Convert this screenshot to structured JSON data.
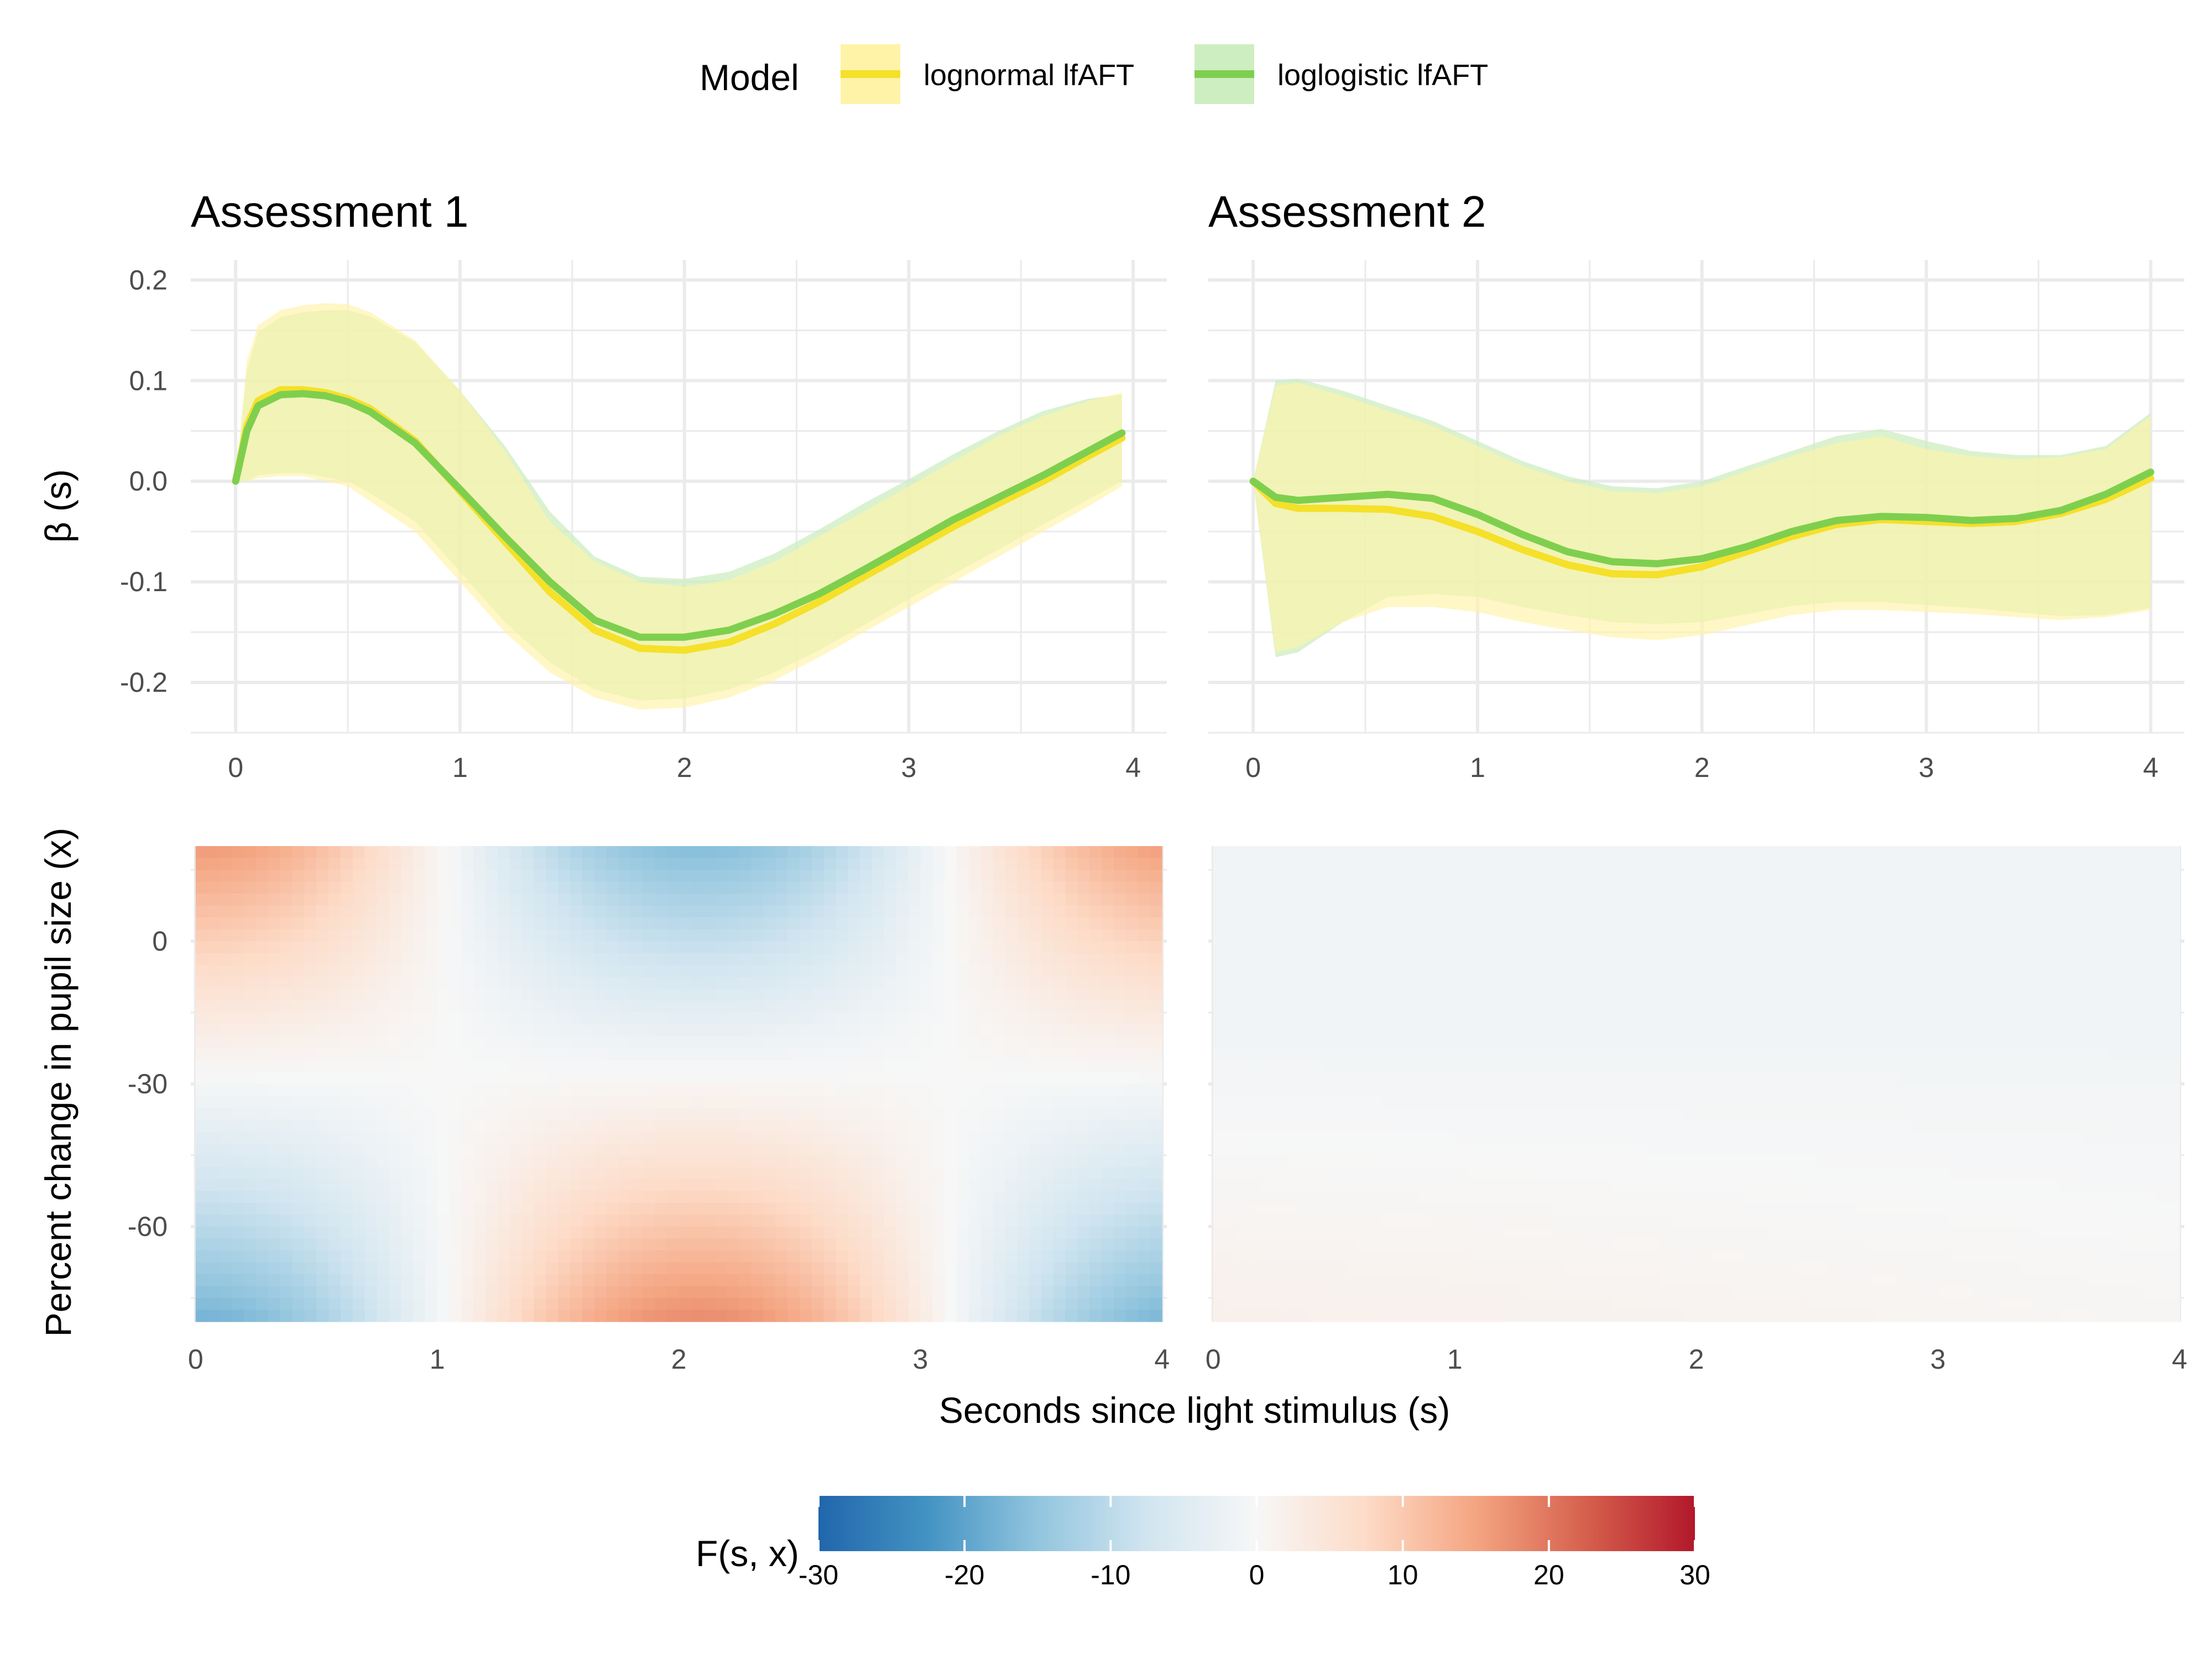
{
  "legend": {
    "title": "Model",
    "items": [
      {
        "label": "lognormal lfAFT",
        "line_color": "#f5e02a",
        "band_color": "#fff3a8"
      },
      {
        "label": "loglogistic lfAFT",
        "line_color": "#7fcf4f",
        "band_color": "#cdeec0"
      }
    ]
  },
  "colorbar": {
    "title": "F(s, x)",
    "ticks": [
      "-30",
      "-20",
      "-10",
      "0",
      "10",
      "20",
      "30"
    ],
    "range": [
      -30,
      30
    ],
    "colors": [
      "#2166ac",
      "#4393c3",
      "#92c5de",
      "#d1e5f0",
      "#f7f7f7",
      "#fddbc7",
      "#f4a582",
      "#d6604d",
      "#b2182b"
    ]
  },
  "chart_data": [
    {
      "type": "line",
      "panel": "top-left",
      "title": "Assessment 1",
      "xlabel": "",
      "ylabel": "β (s)",
      "xlim": [
        -0.2,
        4.15
      ],
      "ylim": [
        -0.25,
        0.22
      ],
      "x_ticks": [
        "0",
        "1",
        "2",
        "3",
        "4"
      ],
      "y_ticks": [
        "0.2",
        "0.1",
        "0.0",
        "-0.1",
        "-0.2"
      ],
      "series": [
        {
          "name": "lognormal lfAFT",
          "x": [
            0,
            0.05,
            0.1,
            0.2,
            0.3,
            0.4,
            0.5,
            0.6,
            0.8,
            1.0,
            1.2,
            1.4,
            1.6,
            1.8,
            2.0,
            2.2,
            2.4,
            2.6,
            2.8,
            3.0,
            3.2,
            3.4,
            3.6,
            3.8,
            3.95
          ],
          "y": [
            0,
            0.055,
            0.08,
            0.091,
            0.091,
            0.088,
            0.082,
            0.072,
            0.04,
            -0.01,
            -0.06,
            -0.11,
            -0.148,
            -0.166,
            -0.168,
            -0.16,
            -0.142,
            -0.12,
            -0.095,
            -0.07,
            -0.045,
            -0.022,
            0.0,
            0.025,
            0.043
          ],
          "lower": [
            0,
            0.0,
            0.003,
            0.005,
            0.005,
            0.0,
            -0.005,
            -0.02,
            -0.05,
            -0.1,
            -0.15,
            -0.19,
            -0.215,
            -0.227,
            -0.225,
            -0.215,
            -0.198,
            -0.175,
            -0.15,
            -0.125,
            -0.1,
            -0.075,
            -0.05,
            -0.025,
            -0.005
          ],
          "upper": [
            0,
            0.12,
            0.155,
            0.17,
            0.175,
            0.177,
            0.176,
            0.168,
            0.14,
            0.09,
            0.03,
            -0.04,
            -0.08,
            -0.1,
            -0.105,
            -0.098,
            -0.08,
            -0.055,
            -0.03,
            -0.005,
            0.02,
            0.045,
            0.065,
            0.08,
            0.088
          ]
        },
        {
          "name": "loglogistic lfAFT",
          "x": [
            0,
            0.05,
            0.1,
            0.2,
            0.3,
            0.4,
            0.5,
            0.6,
            0.8,
            1.0,
            1.2,
            1.4,
            1.6,
            1.8,
            2.0,
            2.2,
            2.4,
            2.6,
            2.8,
            3.0,
            3.2,
            3.4,
            3.6,
            3.8,
            3.95
          ],
          "y": [
            0,
            0.05,
            0.075,
            0.086,
            0.087,
            0.085,
            0.079,
            0.069,
            0.038,
            -0.008,
            -0.055,
            -0.1,
            -0.138,
            -0.155,
            -0.155,
            -0.148,
            -0.132,
            -0.112,
            -0.088,
            -0.063,
            -0.038,
            -0.016,
            0.006,
            0.03,
            0.048
          ],
          "lower": [
            0,
            0.0,
            0.006,
            0.008,
            0.008,
            0.004,
            0.0,
            -0.012,
            -0.04,
            -0.09,
            -0.14,
            -0.18,
            -0.207,
            -0.218,
            -0.216,
            -0.207,
            -0.19,
            -0.168,
            -0.143,
            -0.117,
            -0.092,
            -0.068,
            -0.043,
            -0.018,
            0.0
          ],
          "upper": [
            0,
            0.11,
            0.148,
            0.163,
            0.168,
            0.17,
            0.17,
            0.164,
            0.138,
            0.09,
            0.035,
            -0.03,
            -0.075,
            -0.095,
            -0.097,
            -0.09,
            -0.072,
            -0.048,
            -0.022,
            0.002,
            0.027,
            0.05,
            0.07,
            0.082,
            0.086
          ]
        }
      ]
    },
    {
      "type": "line",
      "panel": "top-right",
      "title": "Assessment 2",
      "xlabel": "",
      "ylabel": "",
      "xlim": [
        -0.2,
        4.15
      ],
      "ylim": [
        -0.25,
        0.22
      ],
      "x_ticks": [
        "0",
        "1",
        "2",
        "3",
        "4"
      ],
      "y_ticks": [],
      "series": [
        {
          "name": "lognormal lfAFT",
          "x": [
            0,
            0.1,
            0.2,
            0.4,
            0.6,
            0.8,
            1.0,
            1.2,
            1.4,
            1.6,
            1.8,
            2.0,
            2.2,
            2.4,
            2.6,
            2.8,
            3.0,
            3.2,
            3.4,
            3.6,
            3.8,
            4.0
          ],
          "y": [
            0,
            -0.022,
            -0.027,
            -0.027,
            -0.028,
            -0.035,
            -0.05,
            -0.068,
            -0.083,
            -0.092,
            -0.093,
            -0.085,
            -0.07,
            -0.055,
            -0.043,
            -0.038,
            -0.04,
            -0.042,
            -0.04,
            -0.032,
            -0.018,
            0.003
          ],
          "lower": [
            0,
            -0.17,
            -0.165,
            -0.14,
            -0.125,
            -0.125,
            -0.13,
            -0.14,
            -0.148,
            -0.155,
            -0.158,
            -0.153,
            -0.143,
            -0.133,
            -0.128,
            -0.128,
            -0.13,
            -0.132,
            -0.135,
            -0.138,
            -0.135,
            -0.128
          ],
          "upper": [
            0,
            0.095,
            0.098,
            0.085,
            0.07,
            0.055,
            0.035,
            0.015,
            0.0,
            -0.01,
            -0.012,
            -0.005,
            0.01,
            0.025,
            0.038,
            0.045,
            0.032,
            0.025,
            0.022,
            0.024,
            0.032,
            0.065
          ]
        },
        {
          "name": "loglogistic lfAFT",
          "x": [
            0,
            0.1,
            0.2,
            0.4,
            0.6,
            0.8,
            1.0,
            1.2,
            1.4,
            1.6,
            1.8,
            2.0,
            2.2,
            2.4,
            2.6,
            2.8,
            3.0,
            3.2,
            3.4,
            3.6,
            3.8,
            4.0
          ],
          "y": [
            0,
            -0.016,
            -0.019,
            -0.016,
            -0.013,
            -0.017,
            -0.033,
            -0.053,
            -0.07,
            -0.08,
            -0.082,
            -0.077,
            -0.065,
            -0.05,
            -0.039,
            -0.035,
            -0.036,
            -0.039,
            -0.037,
            -0.029,
            -0.013,
            0.009
          ],
          "lower": [
            0,
            -0.175,
            -0.17,
            -0.14,
            -0.115,
            -0.112,
            -0.115,
            -0.125,
            -0.133,
            -0.14,
            -0.142,
            -0.14,
            -0.132,
            -0.124,
            -0.12,
            -0.12,
            -0.123,
            -0.126,
            -0.13,
            -0.134,
            -0.133,
            -0.126
          ],
          "upper": [
            0,
            0.1,
            0.102,
            0.09,
            0.075,
            0.06,
            0.04,
            0.02,
            0.005,
            -0.005,
            -0.007,
            0.0,
            0.015,
            0.03,
            0.045,
            0.052,
            0.04,
            0.03,
            0.026,
            0.026,
            0.035,
            0.068
          ]
        }
      ]
    },
    {
      "type": "heatmap",
      "panel": "bottom-left",
      "xlabel": "Seconds since light stimulus (s)",
      "ylabel": "Percent change in pupil size (x)",
      "xlim": [
        -0.02,
        4.02
      ],
      "ylim": [
        -80,
        20
      ],
      "x_ticks": [
        "0",
        "1",
        "2",
        "3",
        "4"
      ],
      "y_ticks": [
        "0",
        "-30",
        "-60"
      ],
      "function": "F(s, x)",
      "corner_values": {
        "top_left": 14,
        "top_right": 16,
        "bottom_left": -22,
        "bottom_right": -24,
        "top_center": -8,
        "bottom_center": 13
      }
    },
    {
      "type": "heatmap",
      "panel": "bottom-right",
      "xlabel": "Seconds since light stimulus (s)",
      "ylabel": "",
      "xlim": [
        -0.02,
        4.02
      ],
      "ylim": [
        -80,
        20
      ],
      "x_ticks": [
        "0",
        "1",
        "2",
        "3",
        "4"
      ],
      "y_ticks": [],
      "function": "F(s, x)",
      "corner_values": {
        "top_left": -1,
        "top_right": -1,
        "bottom_left": 3,
        "bottom_right": 1
      }
    }
  ],
  "shared": {
    "x_axis_title": "Seconds since light stimulus (s)",
    "y_axis_title_bottom": "Percent change in pupil size (x)"
  }
}
